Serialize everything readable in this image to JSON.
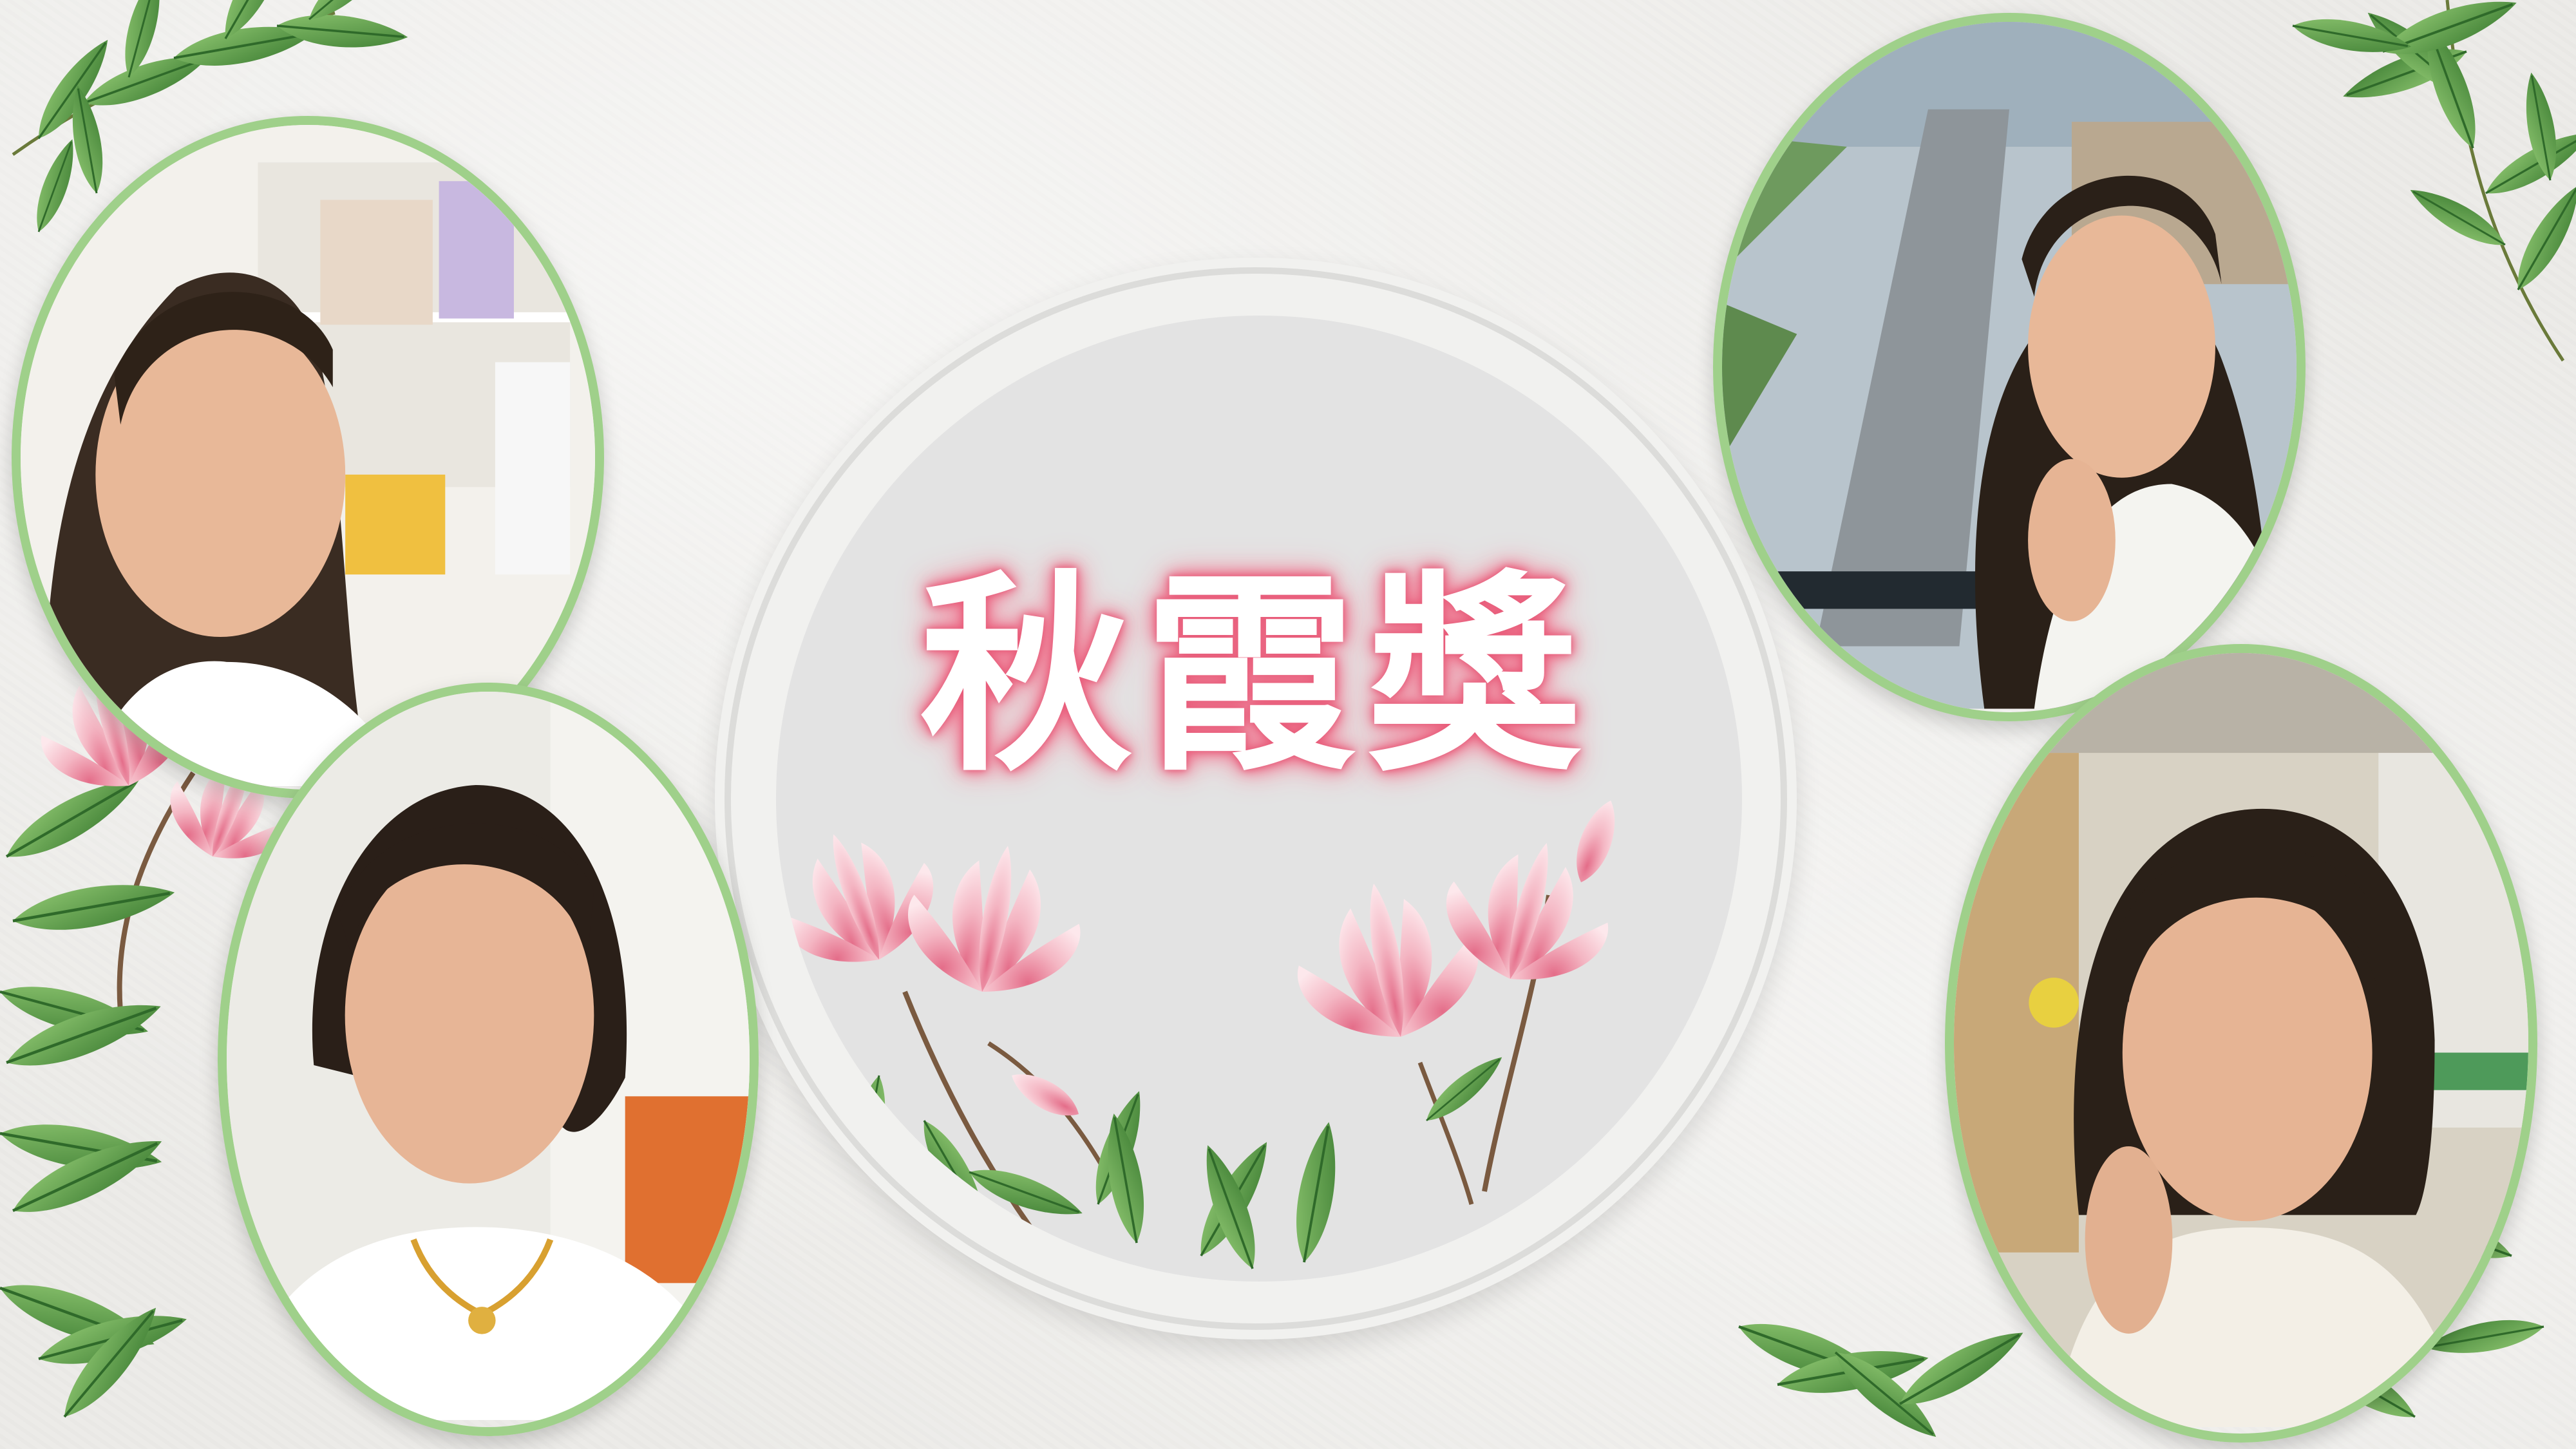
{
  "title": "秋霞獎",
  "colors": {
    "background": "#ecebe8",
    "frame_border": "#9fd08a",
    "title_glow": "#e85c7a",
    "title_fill": "#ffffff",
    "leaf": "#5f9e4a",
    "blossom": "#f3b8c4"
  },
  "photos": [
    {
      "name": "top-left-portrait",
      "scene": "shelf-background"
    },
    {
      "name": "bottom-left-portrait",
      "scene": "white-curtain"
    },
    {
      "name": "top-right-portrait",
      "scene": "city-road-window"
    },
    {
      "name": "bottom-right-portrait",
      "scene": "shop-interior"
    }
  ]
}
